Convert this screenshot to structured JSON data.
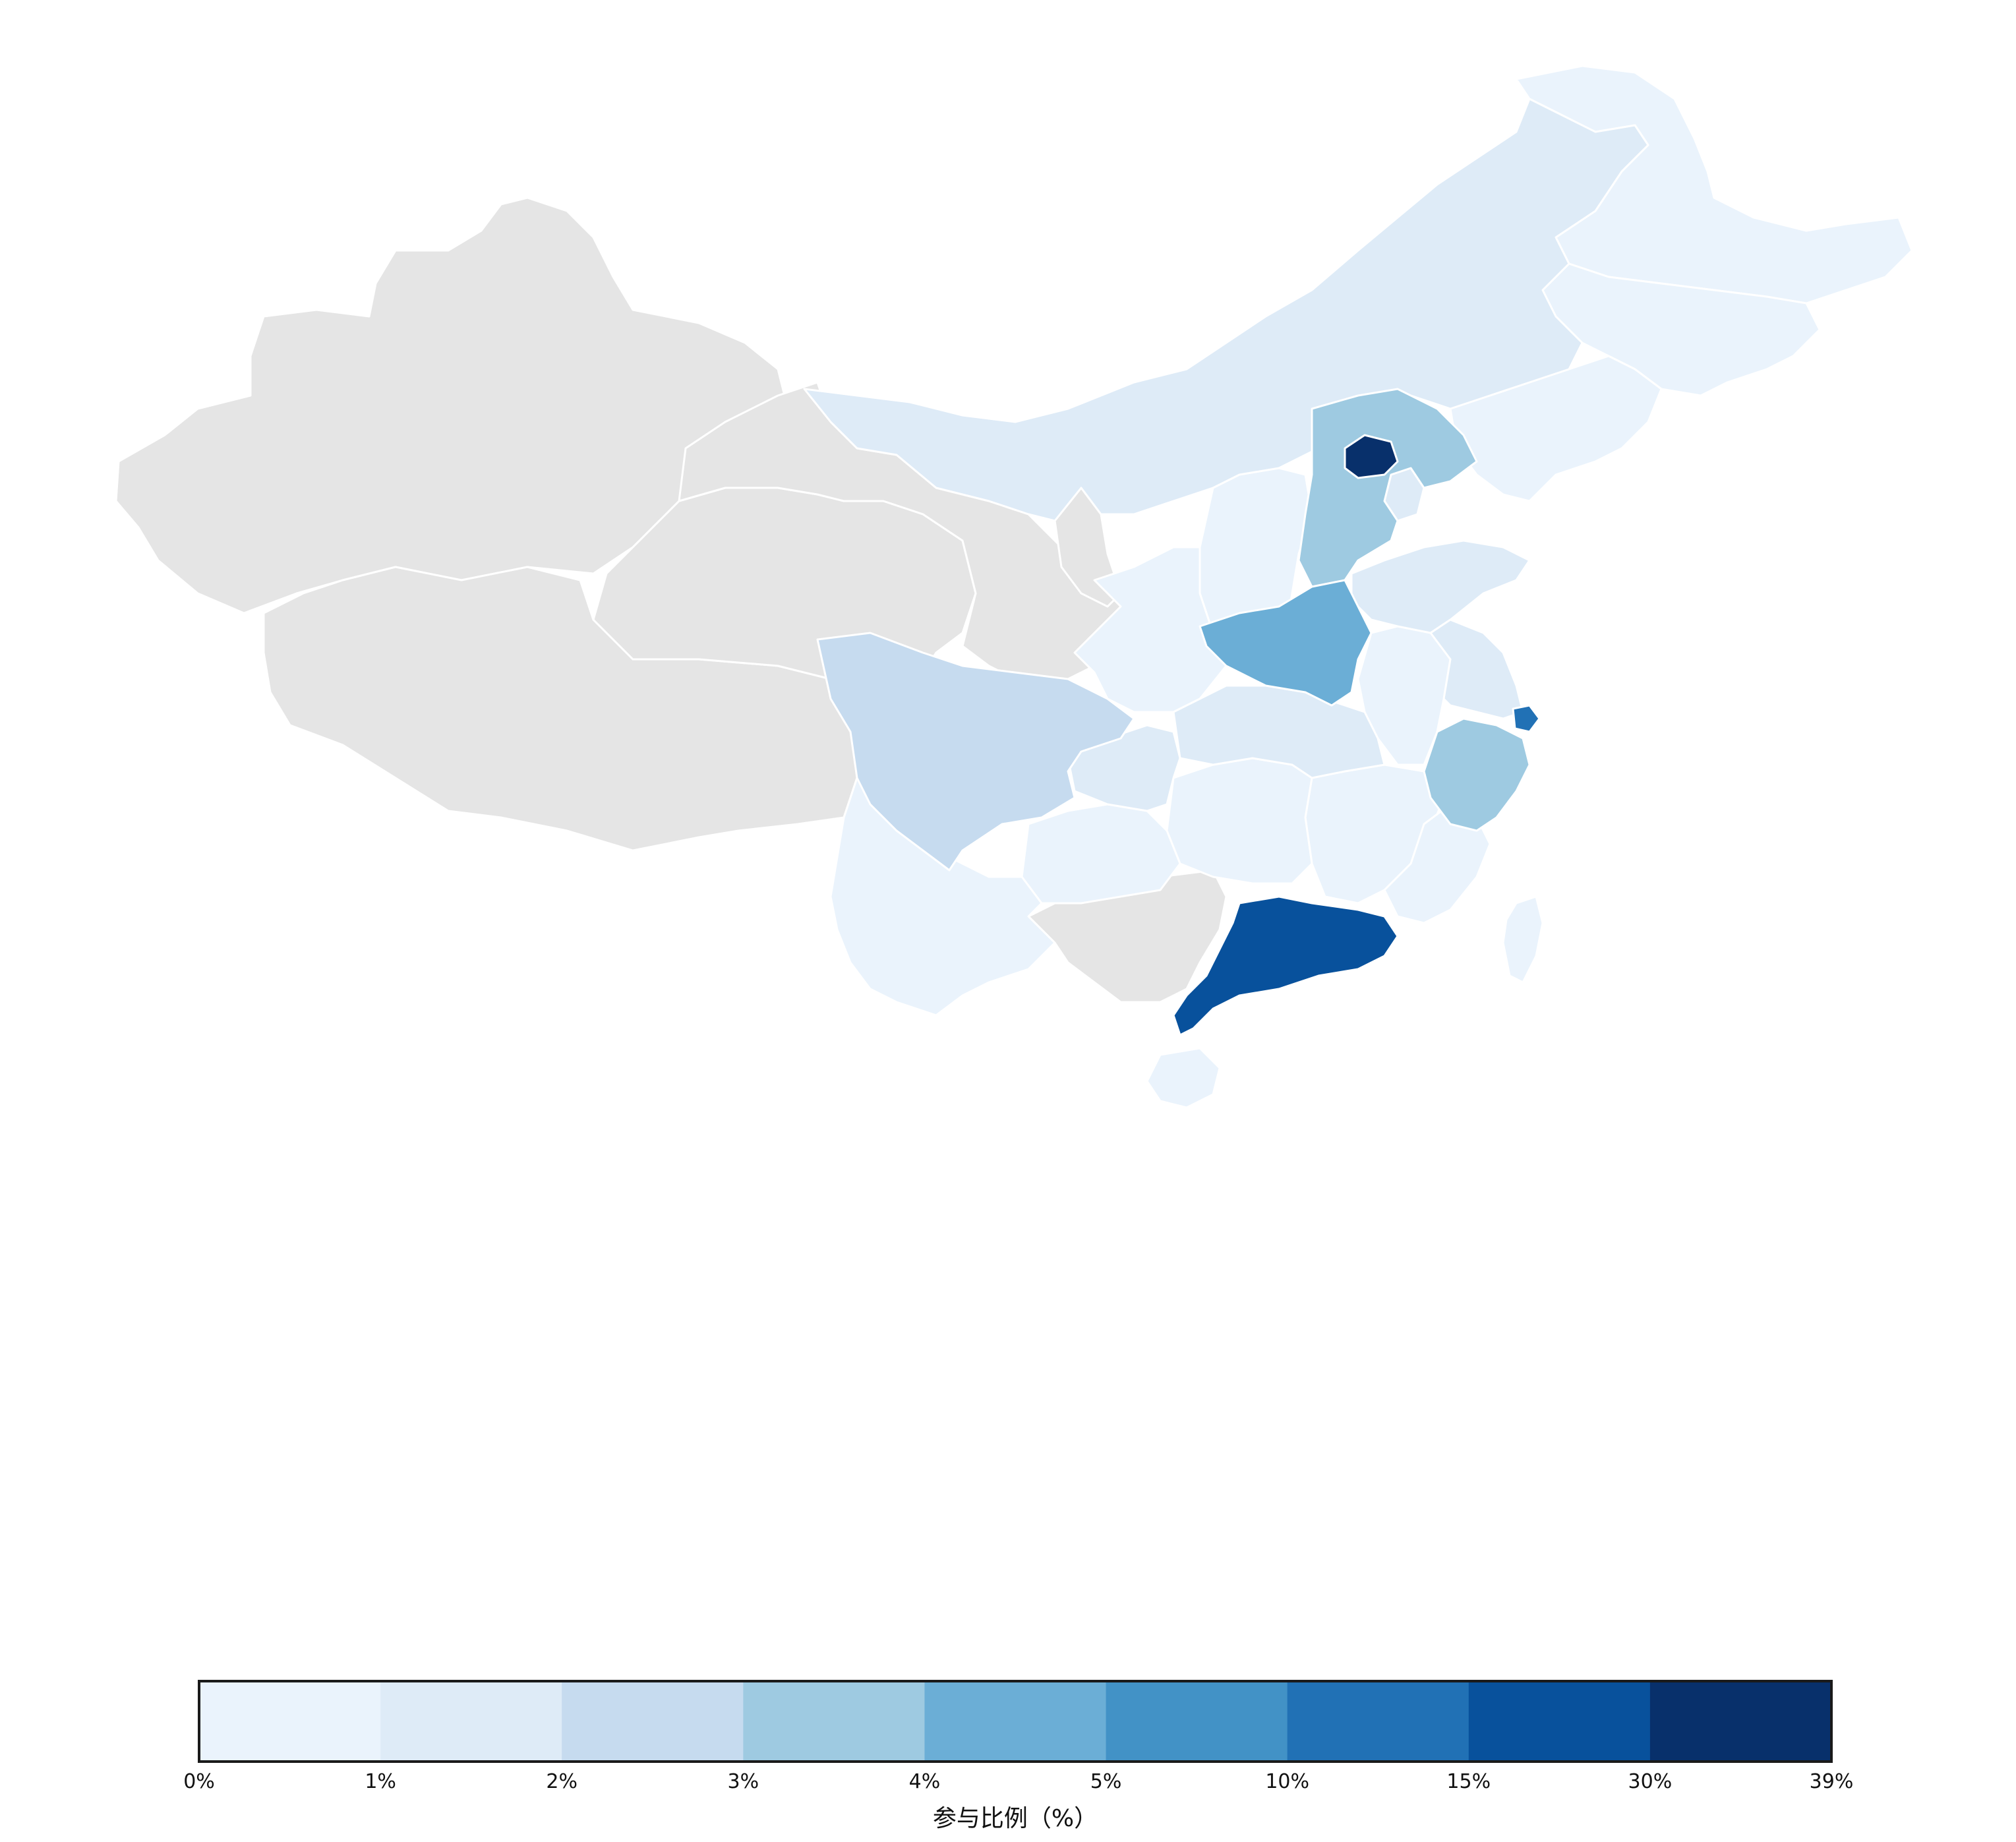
{
  "legend": {
    "title": "参与比例（%）",
    "bins": [
      {
        "color": "#eaf3fc"
      },
      {
        "color": "#deebf7"
      },
      {
        "color": "#c6dbef"
      },
      {
        "color": "#9ecae1"
      },
      {
        "color": "#6baed6"
      },
      {
        "color": "#4292c6"
      },
      {
        "color": "#2171b5"
      },
      {
        "color": "#08519c"
      },
      {
        "color": "#08306b"
      }
    ],
    "ticks": [
      "0%",
      "1%",
      "2%",
      "3%",
      "4%",
      "5%",
      "10%",
      "15%",
      "30%",
      "39%"
    ]
  },
  "colors": {
    "no_data": "#e5e5e5",
    "border": "#ffffff"
  },
  "chart_data": {
    "type": "choropleth",
    "legend_title": "参与比例（%）",
    "bin_edges": [
      0,
      1,
      2,
      3,
      4,
      5,
      10,
      15,
      30,
      39
    ],
    "regions": [
      {
        "region": "beijing",
        "bin": "30-39",
        "color": "#08306b"
      },
      {
        "region": "guangdong",
        "bin": "15-30",
        "color": "#08519c"
      },
      {
        "region": "shanghai",
        "bin": "10-15",
        "color": "#2171b5"
      },
      {
        "region": "henan",
        "bin": "4-5",
        "color": "#6baed6"
      },
      {
        "region": "hebei",
        "bin": "3-4",
        "color": "#9ecae1"
      },
      {
        "region": "zhejiang",
        "bin": "3-4",
        "color": "#9ecae1"
      },
      {
        "region": "sichuan",
        "bin": "2-3",
        "color": "#c6dbef"
      },
      {
        "region": "inner-mongolia",
        "bin": "1-2",
        "color": "#deebf7"
      },
      {
        "region": "shandong",
        "bin": "1-2",
        "color": "#deebf7"
      },
      {
        "region": "hubei",
        "bin": "1-2",
        "color": "#deebf7"
      },
      {
        "region": "jiangsu",
        "bin": "1-2",
        "color": "#deebf7"
      },
      {
        "region": "tianjin",
        "bin": "1-2",
        "color": "#deebf7"
      },
      {
        "region": "chongqing",
        "bin": "1-2",
        "color": "#deebf7"
      },
      {
        "region": "heilongjiang",
        "bin": "0-1",
        "color": "#eaf3fc"
      },
      {
        "region": "jilin",
        "bin": "0-1",
        "color": "#eaf3fc"
      },
      {
        "region": "liaoning",
        "bin": "0-1",
        "color": "#eaf3fc"
      },
      {
        "region": "shanxi",
        "bin": "0-1",
        "color": "#eaf3fc"
      },
      {
        "region": "shaanxi",
        "bin": "0-1",
        "color": "#eaf3fc"
      },
      {
        "region": "anhui",
        "bin": "0-1",
        "color": "#eaf3fc"
      },
      {
        "region": "jiangxi",
        "bin": "0-1",
        "color": "#eaf3fc"
      },
      {
        "region": "hunan",
        "bin": "0-1",
        "color": "#eaf3fc"
      },
      {
        "region": "fujian",
        "bin": "0-1",
        "color": "#eaf3fc"
      },
      {
        "region": "guizhou",
        "bin": "0-1",
        "color": "#eaf3fc"
      },
      {
        "region": "yunnan",
        "bin": "0-1",
        "color": "#eaf3fc"
      },
      {
        "region": "hainan",
        "bin": "0-1",
        "color": "#eaf3fc"
      },
      {
        "region": "taiwan",
        "bin": "0-1",
        "color": "#eaf3fc"
      },
      {
        "region": "xinjiang",
        "bin": "no-data",
        "color": "#e5e5e5"
      },
      {
        "region": "tibet",
        "bin": "no-data",
        "color": "#e5e5e5"
      },
      {
        "region": "qinghai",
        "bin": "no-data",
        "color": "#e5e5e5"
      },
      {
        "region": "gansu",
        "bin": "no-data",
        "color": "#e5e5e5"
      },
      {
        "region": "ningxia",
        "bin": "no-data",
        "color": "#e5e5e5"
      },
      {
        "region": "guangxi",
        "bin": "no-data",
        "color": "#e5e5e5"
      }
    ]
  }
}
